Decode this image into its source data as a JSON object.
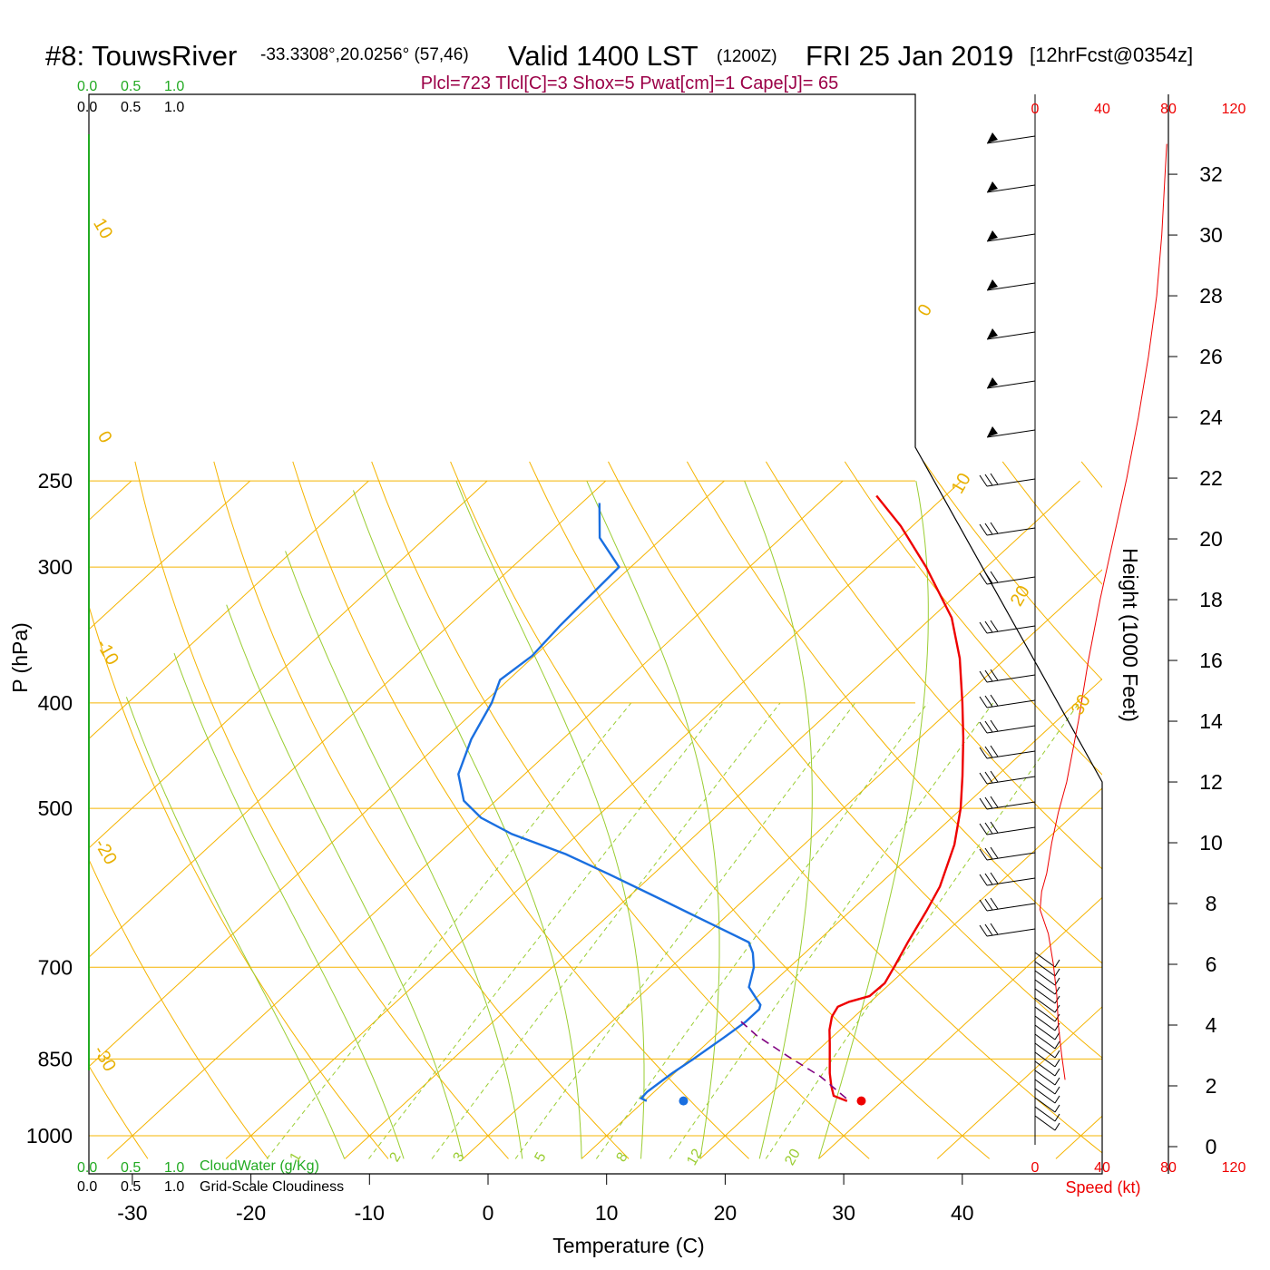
{
  "header": {
    "station": "#8: TouwsRiver",
    "coords": "-33.3308°,20.0256° (57,46)",
    "valid": "Valid 1400 LST",
    "zulu": "(1200Z)",
    "date": "FRI 25 Jan 2019",
    "forecast": "[12hrFcst@0354z]",
    "indices": "Plcl=723 Tlcl[C]=3 Shox=5 Pwat[cm]=1 Cape[J]= 65"
  },
  "cloud_scale": {
    "green_ticks": [
      "0.0",
      "0.5",
      "1.0"
    ],
    "black_ticks": [
      "0.0",
      "0.5",
      "1.0"
    ],
    "cloudwater_label": "CloudWater (g/Kg)",
    "cloudiness_label": "Grid-Scale Cloudiness"
  },
  "speed_scale": {
    "ticks": [
      "0",
      "40",
      "80",
      "120"
    ],
    "label": "Speed (kt)",
    "color": "#ee0000"
  },
  "colors": {
    "temperature": "#ee0000",
    "dewpoint": "#1a6fe0",
    "isotherm": "#f5b400",
    "mixing_ratio": "#9acd32",
    "parcel": "#800080",
    "cloudwater_axis": "#22aa22"
  },
  "chart_data": {
    "type": "line",
    "title": "#8: TouwsRiver",
    "xlabel": "Temperature (C)",
    "ylabel": "P (hPa)",
    "y2label": "Height (1000 Feet)",
    "x_ticks": [
      -30,
      -20,
      -10,
      0,
      10,
      20,
      30,
      40
    ],
    "y_ticks": [
      250,
      300,
      400,
      500,
      700,
      850,
      1000
    ],
    "xlim": [
      -33.5,
      36
    ],
    "ylim": [
      1050,
      250
    ],
    "yscale": "log",
    "height_ticks": [
      0,
      2,
      4,
      6,
      8,
      10,
      12,
      14,
      16,
      18,
      20,
      22,
      24,
      26,
      28,
      30,
      32
    ],
    "skewed_isotherm_labels": [
      "10",
      "0",
      "-10",
      "-20",
      "-30",
      "0",
      "10",
      "20",
      "30"
    ],
    "mixing_ratio_labels": [
      "1",
      "2",
      "3",
      "5",
      "8",
      "12",
      "20"
    ],
    "series": [
      {
        "name": "Temperature",
        "points": [
          [
            27.1,
            929
          ],
          [
            25.5,
            919
          ],
          [
            24.4,
            900
          ],
          [
            23.1,
            876
          ],
          [
            21.8,
            850
          ],
          [
            20.4,
            823
          ],
          [
            19.1,
            799
          ],
          [
            18.1,
            777
          ],
          [
            17.7,
            761
          ],
          [
            18.2,
            753
          ],
          [
            19.4,
            744
          ],
          [
            19.5,
            724
          ],
          [
            18.7,
            696
          ],
          [
            17.7,
            664
          ],
          [
            16.4,
            621
          ],
          [
            15.3,
            590
          ],
          [
            12.7,
            540
          ],
          [
            9.9,
            500
          ],
          [
            7.1,
            467
          ],
          [
            3.7,
            431
          ],
          [
            0.4,
            400
          ],
          [
            -3.9,
            364
          ],
          [
            -8.3,
            334
          ],
          [
            -15.1,
            300
          ],
          [
            -21.0,
            275
          ],
          [
            -25.8,
            258
          ]
        ]
      },
      {
        "name": "Dewpoint",
        "points": [
          [
            10.2,
            929
          ],
          [
            9.5,
            924
          ],
          [
            9.4,
            911
          ],
          [
            9.8,
            876
          ],
          [
            10.3,
            850
          ],
          [
            10.9,
            813
          ],
          [
            11.3,
            786
          ],
          [
            11.3,
            765
          ],
          [
            11.0,
            758
          ],
          [
            9.8,
            745
          ],
          [
            8.4,
            730
          ],
          [
            7.0,
            700
          ],
          [
            5.6,
            679
          ],
          [
            4.3,
            664
          ],
          [
            -0.3,
            640
          ],
          [
            -6.9,
            607
          ],
          [
            -13.7,
            575
          ],
          [
            -19.2,
            551
          ],
          [
            -25.6,
            528
          ],
          [
            -29.7,
            510
          ],
          [
            -32.7,
            492
          ],
          [
            -35.6,
            465
          ],
          [
            -37.7,
            432
          ],
          [
            -39.3,
            400
          ],
          [
            -40.7,
            381
          ],
          [
            -40.2,
            362
          ],
          [
            -40.6,
            340
          ],
          [
            -41.0,
            300
          ],
          [
            -45.3,
            282
          ],
          [
            -48.5,
            262
          ]
        ]
      },
      {
        "name": "Parcel",
        "points": [
          [
            26.8,
            924
          ],
          [
            22.6,
            882
          ],
          [
            18.0,
            845
          ],
          [
            13.5,
            809
          ],
          [
            10.3,
            780
          ]
        ]
      },
      {
        "name": "Wind speed (kt)",
        "points": [
          [
            18,
            2.2
          ],
          [
            16,
            3.0
          ],
          [
            14,
            4.0
          ],
          [
            13,
            5.0
          ],
          [
            11,
            6.0
          ],
          [
            8,
            7.0
          ],
          [
            3,
            7.8
          ],
          [
            4,
            8.4
          ],
          [
            7,
            9.0
          ],
          [
            10,
            10.0
          ],
          [
            14,
            11.0
          ],
          [
            19,
            12.0
          ],
          [
            26,
            14.0
          ],
          [
            32,
            16.0
          ],
          [
            39,
            18.0
          ],
          [
            47,
            20.0
          ],
          [
            55,
            22.0
          ],
          [
            62,
            24.0
          ],
          [
            68,
            26.0
          ],
          [
            73,
            28.0
          ],
          [
            76,
            30.0
          ],
          [
            78,
            32.0
          ],
          [
            79,
            33.0
          ]
        ]
      }
    ],
    "surface_temperature": 28.3,
    "surface_dewpoint": 13.3,
    "surface_pressure": 929,
    "cloudwater_range": [
      0.0,
      1.0
    ],
    "speed_range": [
      0,
      120
    ],
    "grid": true
  }
}
